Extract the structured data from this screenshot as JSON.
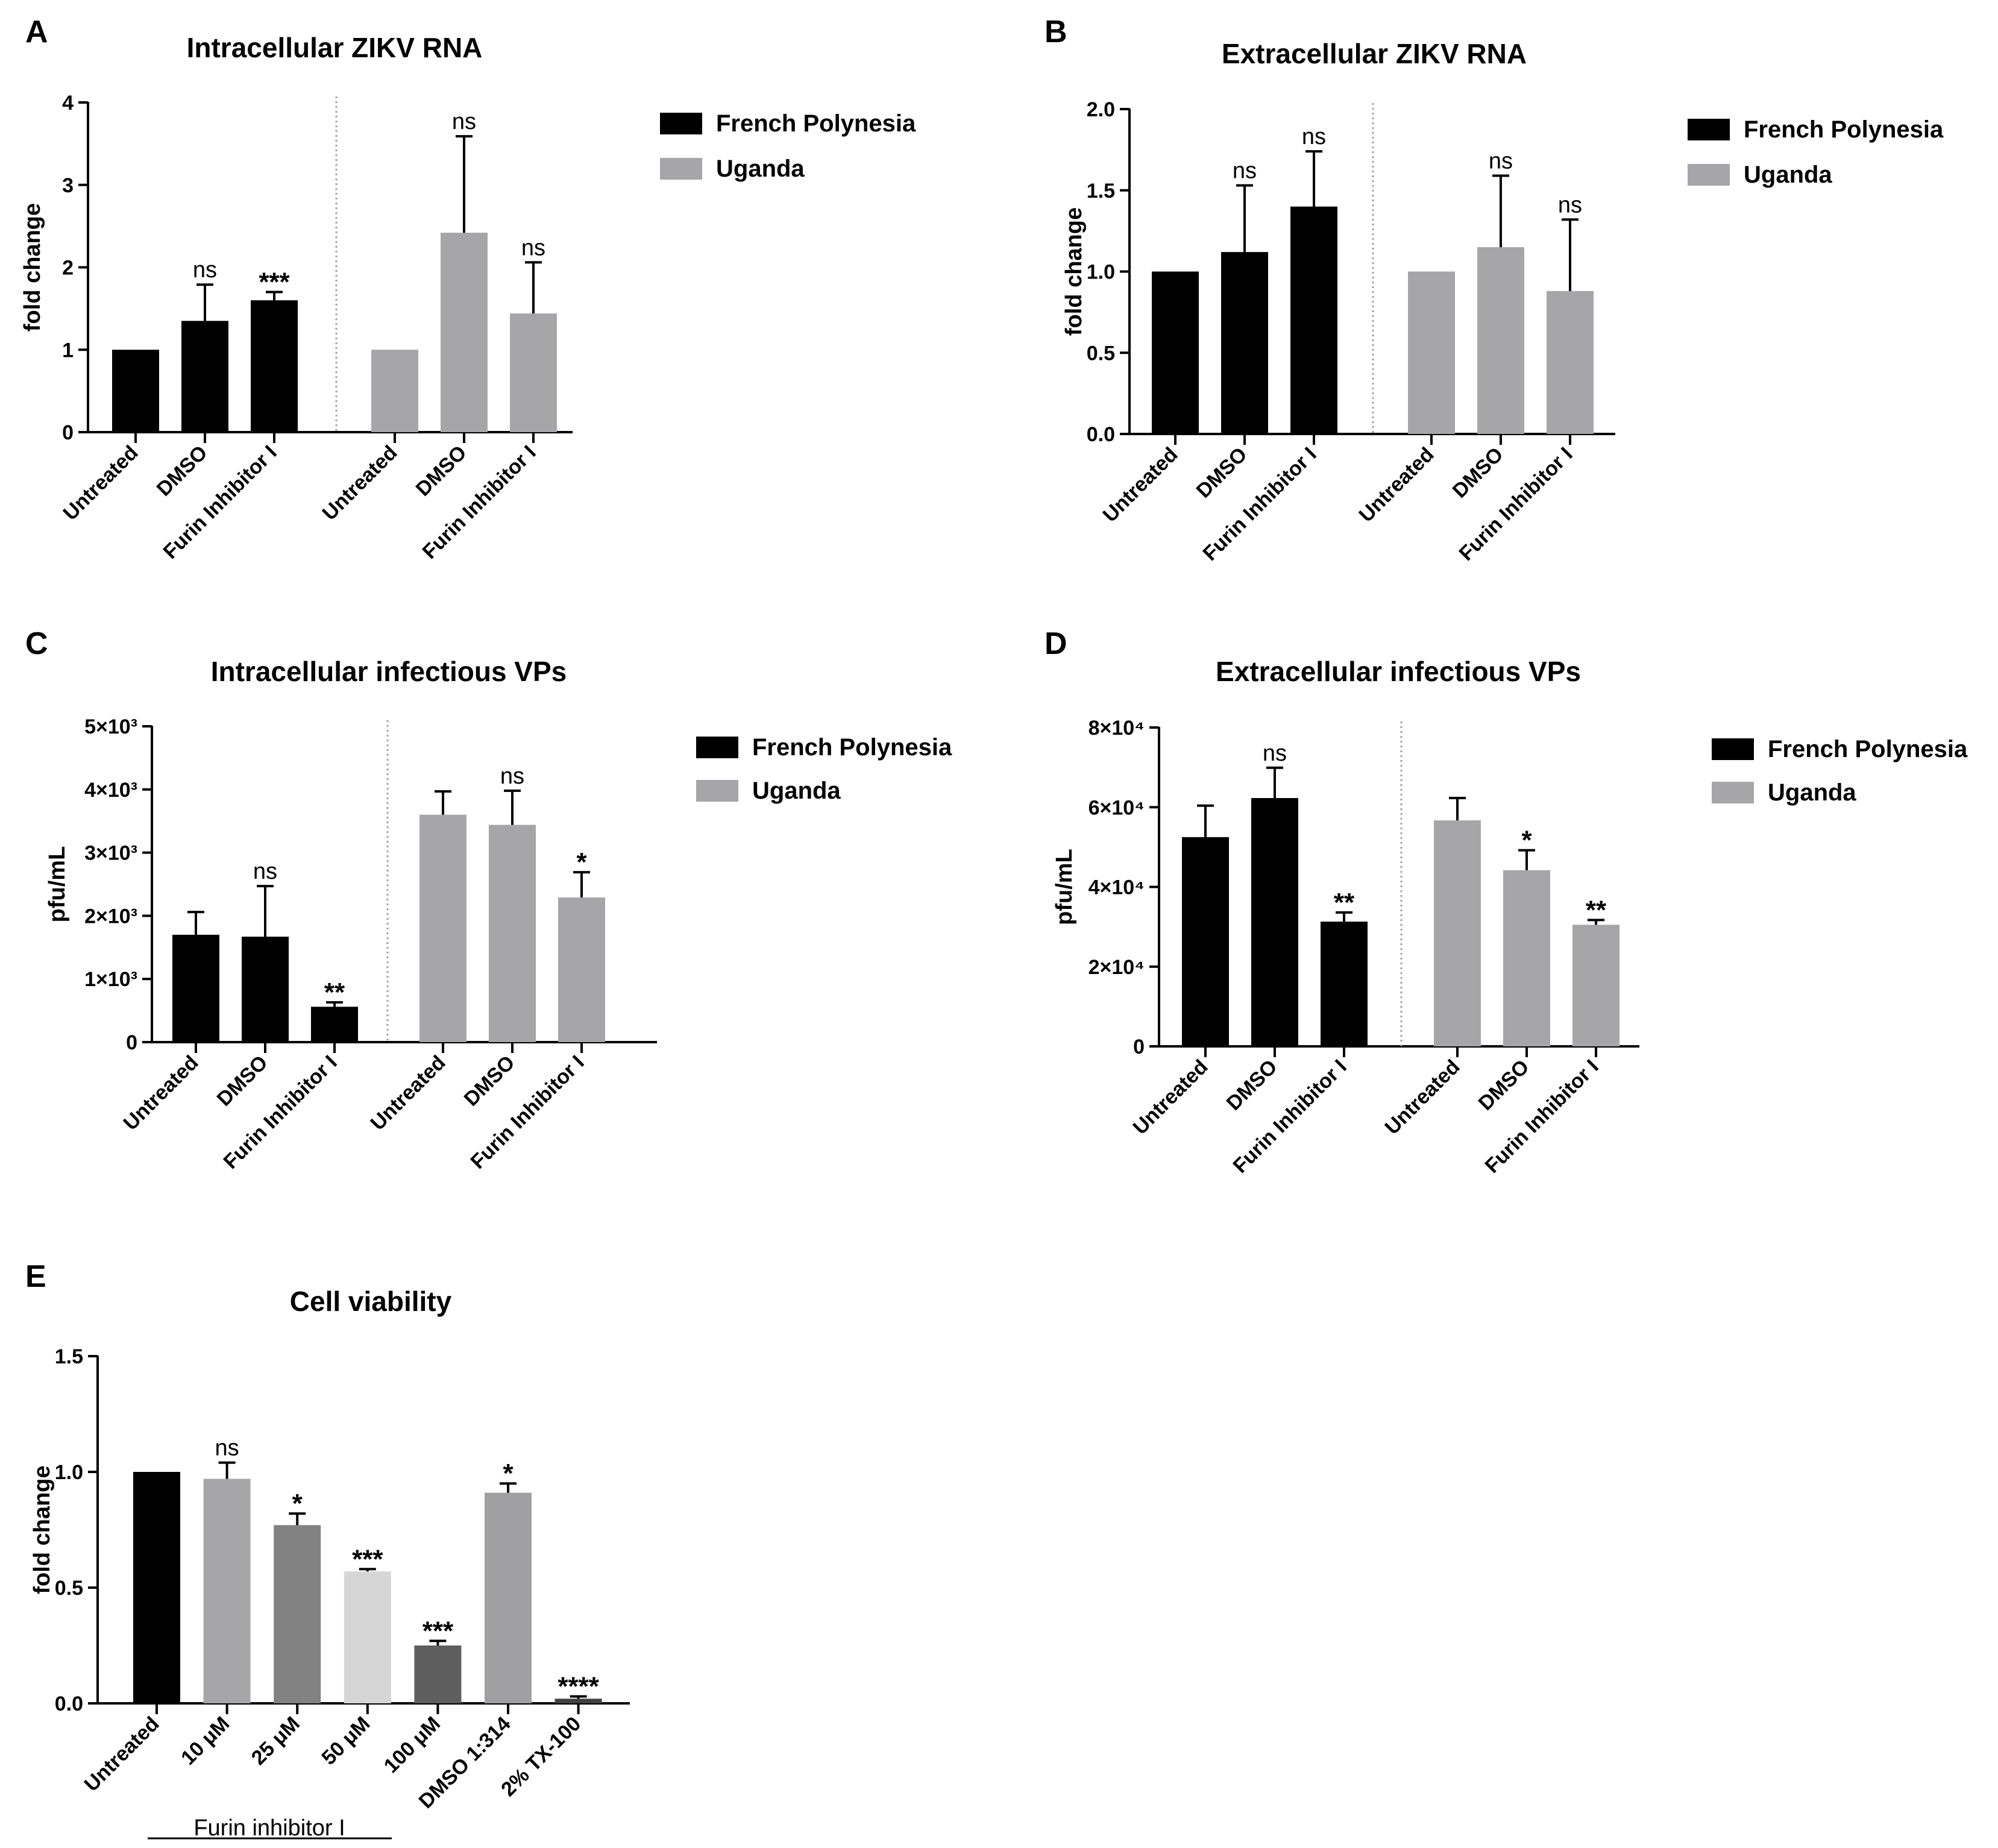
{
  "figure": {
    "panel_letters": [
      "A",
      "B",
      "C",
      "D",
      "E"
    ],
    "colors": {
      "french_polynesia": "#000000",
      "uganda": "#a6a6a8"
    }
  },
  "chart_data": [
    {
      "panel": "A",
      "type": "bar",
      "title": "Intracellular ZIKV RNA",
      "ylabel": "fold change",
      "xlabel": "",
      "ylim": [
        0,
        4
      ],
      "yticks": [
        0,
        1,
        2,
        3,
        4
      ],
      "ytick_labels": [
        "0",
        "1",
        "2",
        "3",
        "4"
      ],
      "legend": [
        "French Polynesia",
        "Uganda"
      ],
      "legend_position": "right",
      "groups": [
        {
          "name": "French Polynesia",
          "categories": [
            "Untreated",
            "DMSO",
            "Furin Inhibitor I"
          ],
          "values": [
            1.0,
            1.35,
            1.6
          ],
          "errors": [
            0,
            0.44,
            0.1
          ],
          "annotations": [
            "",
            "ns",
            "***"
          ]
        },
        {
          "name": "Uganda",
          "categories": [
            "Untreated",
            "DMSO",
            "Furin Inhibitor I"
          ],
          "values": [
            1.0,
            2.42,
            1.44
          ],
          "errors": [
            0,
            1.17,
            0.62
          ],
          "annotations": [
            "",
            "ns",
            "ns"
          ]
        }
      ]
    },
    {
      "panel": "B",
      "type": "bar",
      "title": "Extracellular ZIKV RNA",
      "ylabel": "fold change",
      "xlabel": "",
      "ylim": [
        0,
        2.0
      ],
      "yticks": [
        0,
        0.5,
        1.0,
        1.5,
        2.0
      ],
      "ytick_labels": [
        "0.0",
        "0.5",
        "1.0",
        "1.5",
        "2.0"
      ],
      "legend": [
        "French Polynesia",
        "Uganda"
      ],
      "legend_position": "right",
      "groups": [
        {
          "name": "French Polynesia",
          "categories": [
            "Untreated",
            "DMSO",
            "Furin Inhibitor I"
          ],
          "values": [
            1.0,
            1.12,
            1.4
          ],
          "errors": [
            0,
            0.41,
            0.34
          ],
          "annotations": [
            "",
            "ns",
            "ns"
          ]
        },
        {
          "name": "Uganda",
          "categories": [
            "Untreated",
            "DMSO",
            "Furin Inhibitor I"
          ],
          "values": [
            1.0,
            1.15,
            0.88
          ],
          "errors": [
            0,
            0.44,
            0.44
          ],
          "annotations": [
            "",
            "ns",
            "ns"
          ]
        }
      ]
    },
    {
      "panel": "C",
      "type": "bar",
      "title": "Intracellular infectious VPs",
      "ylabel": "pfu/mL",
      "xlabel": "",
      "ylim": [
        0,
        5000
      ],
      "yticks": [
        0,
        1000,
        2000,
        3000,
        4000,
        5000
      ],
      "ytick_labels": [
        "0",
        "1×10³",
        "2×10³",
        "3×10³",
        "4×10³",
        "5×10³"
      ],
      "legend": [
        "French Polynesia",
        "Uganda"
      ],
      "legend_position": "right",
      "groups": [
        {
          "name": "French Polynesia",
          "categories": [
            "Untreated",
            "DMSO",
            "Furin Inhibitor I"
          ],
          "values": [
            1700,
            1670,
            560
          ],
          "errors": [
            360,
            800,
            70
          ],
          "annotations": [
            "",
            "ns",
            "**"
          ]
        },
        {
          "name": "Uganda",
          "categories": [
            "Untreated",
            "DMSO",
            "Furin Inhibitor I"
          ],
          "values": [
            3600,
            3440,
            2290
          ],
          "errors": [
            370,
            540,
            400
          ],
          "annotations": [
            "",
            "ns",
            "*"
          ]
        }
      ]
    },
    {
      "panel": "D",
      "type": "bar",
      "title": "Extracellular infectious VPs",
      "ylabel": "pfu/mL",
      "xlabel": "",
      "ylim": [
        0,
        80000
      ],
      "yticks": [
        0,
        20000,
        40000,
        60000,
        80000
      ],
      "ytick_labels": [
        "0",
        "2×10⁴",
        "4×10⁴",
        "6×10⁴",
        "8×10⁴"
      ],
      "legend": [
        "French Polynesia",
        "Uganda"
      ],
      "legend_position": "right",
      "groups": [
        {
          "name": "French Polynesia",
          "categories": [
            "Untreated",
            "DMSO",
            "Furin Inhibitor I"
          ],
          "values": [
            52500,
            62300,
            31300
          ],
          "errors": [
            7900,
            7600,
            2300
          ],
          "annotations": [
            "",
            "ns",
            "**"
          ]
        },
        {
          "name": "Uganda",
          "categories": [
            "Untreated",
            "DMSO",
            "Furin Inhibitor I"
          ],
          "values": [
            56700,
            44200,
            30500
          ],
          "errors": [
            5600,
            5000,
            1200
          ],
          "annotations": [
            "",
            "*",
            "**"
          ]
        }
      ]
    },
    {
      "panel": "E",
      "type": "bar",
      "title": "Cell viability",
      "ylabel": "fold change",
      "xlabel": "",
      "ylim": [
        0,
        1.5
      ],
      "yticks": [
        0,
        0.5,
        1.0,
        1.5
      ],
      "ytick_labels": [
        "0.0",
        "0.5",
        "1.0",
        "1.5"
      ],
      "categories": [
        "Untreated",
        "10 μM",
        "25 μM",
        "50 μM",
        "100 μM",
        "DMSO 1:314",
        "2% TX-100"
      ],
      "values": [
        1.0,
        0.97,
        0.77,
        0.57,
        0.25,
        0.91,
        0.02
      ],
      "errors": [
        0,
        0.07,
        0.05,
        0.01,
        0.02,
        0.04,
        0.01
      ],
      "annotations": [
        "",
        "ns",
        "*",
        "***",
        "***",
        "*",
        "****"
      ],
      "colors": [
        "#000000",
        "#a6a6a8",
        "#828282",
        "#d6d6d6",
        "#5e5e5e",
        "#a0a0a3",
        "#404040"
      ],
      "group_label": "Furin inhibitor I"
    }
  ]
}
